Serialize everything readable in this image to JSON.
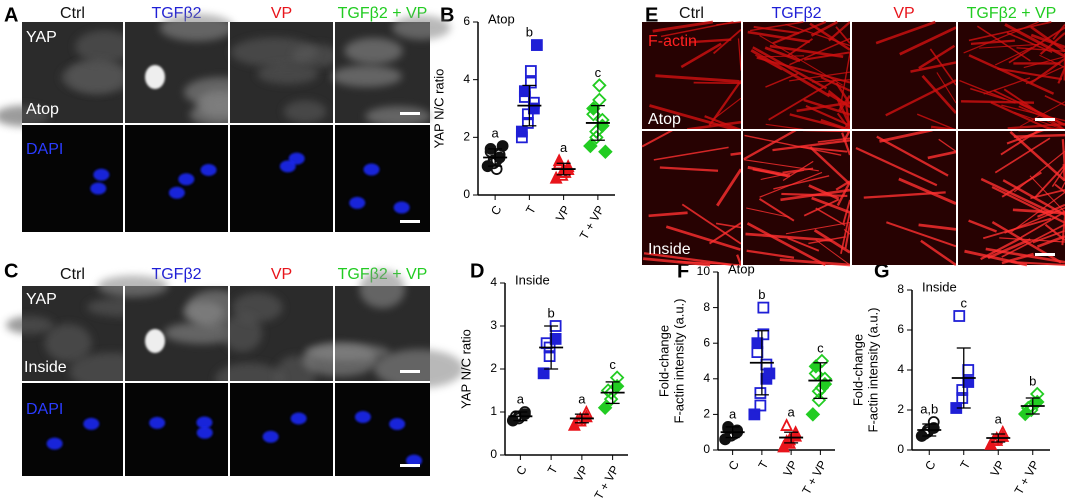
{
  "panel_labels": [
    "A",
    "B",
    "C",
    "D",
    "E",
    "F",
    "G"
  ],
  "panels": {
    "A": {
      "columns": [
        {
          "text": "Ctrl",
          "color": "#111111"
        },
        {
          "text": "TGFβ2",
          "color": "#1f1fd6"
        },
        {
          "text": "VP",
          "color": "#e8141b"
        },
        {
          "text": "TGFβ2 + VP",
          "color": "#22cc22"
        }
      ],
      "labels": [
        "YAP",
        "Atop",
        "DAPI"
      ]
    },
    "C": {
      "columns": [
        {
          "text": "Ctrl",
          "color": "#111111"
        },
        {
          "text": "TGFβ2",
          "color": "#1f1fd6"
        },
        {
          "text": "VP",
          "color": "#e8141b"
        },
        {
          "text": "TGFβ2 + VP",
          "color": "#22cc22"
        }
      ],
      "labels": [
        "YAP",
        "Inside",
        "DAPI"
      ]
    },
    "E": {
      "columns": [
        {
          "text": "Ctrl",
          "color": "#111111"
        },
        {
          "text": "TGFβ2",
          "color": "#1f1fd6"
        },
        {
          "text": "VP",
          "color": "#e8141b"
        },
        {
          "text": "TGFβ2 + VP",
          "color": "#22cc22"
        }
      ],
      "labels": [
        "F-actin",
        "Atop",
        "Inside"
      ]
    }
  },
  "chart_data": [
    {
      "type": "dot",
      "title": "Atop",
      "ylabel": [
        "YAP N/C ratio"
      ],
      "categories": [
        "C",
        "T",
        "VP",
        "T + VP"
      ],
      "colors": [
        "#111111",
        "#1f1fd6",
        "#e8141b",
        "#22cc22"
      ],
      "ylim": [
        0,
        6
      ],
      "yticks": [
        0,
        2,
        4,
        6
      ],
      "letters": [
        "a",
        "b",
        "a",
        "c"
      ],
      "means": [
        1.3,
        3.1,
        0.9,
        2.5
      ],
      "errors": [
        0.3,
        0.7,
        0.2,
        0.6
      ],
      "points": [
        [
          1.0,
          1.1,
          1.2,
          1.3,
          1.4,
          1.5,
          1.6,
          1.2,
          0.9,
          1.7
        ],
        [
          2.2,
          2.5,
          2.8,
          3.0,
          3.2,
          3.4,
          3.6,
          3.9,
          4.3,
          5.2,
          2.0
        ],
        [
          0.6,
          0.7,
          0.8,
          0.9,
          1.0,
          1.1,
          1.2,
          0.8
        ],
        [
          1.7,
          2.0,
          2.2,
          2.4,
          2.6,
          2.8,
          3.0,
          3.3,
          3.8,
          1.5
        ]
      ]
    },
    {
      "type": "dot",
      "title": "Inside",
      "ylabel": [
        "YAP N/C ratio"
      ],
      "categories": [
        "C",
        "T",
        "VP",
        "T + VP"
      ],
      "colors": [
        "#111111",
        "#1f1fd6",
        "#e8141b",
        "#22cc22"
      ],
      "ylim": [
        0,
        4
      ],
      "yticks": [
        0,
        1,
        2,
        3,
        4
      ],
      "letters": [
        "a",
        "b",
        "a",
        "c"
      ],
      "means": [
        0.9,
        2.5,
        0.85,
        1.45
      ],
      "errors": [
        0.1,
        0.5,
        0.1,
        0.25
      ],
      "points": [
        [
          0.8,
          0.85,
          0.9,
          0.95,
          1.0,
          0.9
        ],
        [
          1.9,
          2.3,
          2.5,
          2.7,
          3.0,
          2.6
        ],
        [
          0.7,
          0.8,
          0.85,
          0.9,
          1.0,
          0.8
        ],
        [
          1.1,
          1.3,
          1.45,
          1.6,
          1.8,
          1.5
        ]
      ]
    },
    {
      "type": "dot",
      "title": "Atop",
      "ylabel": [
        "Fold-change",
        "F-actin intensity (a.u.)"
      ],
      "categories": [
        "C",
        "T",
        "VP",
        "T + VP"
      ],
      "colors": [
        "#111111",
        "#1f1fd6",
        "#e8141b",
        "#22cc22"
      ],
      "ylim": [
        0,
        10
      ],
      "yticks": [
        0,
        2,
        4,
        6,
        8,
        10
      ],
      "letters": [
        "a",
        "b",
        "a",
        "c"
      ],
      "means": [
        1.0,
        4.9,
        0.7,
        3.9
      ],
      "errors": [
        0.3,
        1.8,
        0.3,
        1.0
      ],
      "points": [
        [
          0.6,
          0.8,
          0.9,
          1.0,
          1.1,
          1.2,
          1.3,
          0.9
        ],
        [
          2.0,
          2.5,
          3.2,
          4.0,
          4.8,
          5.5,
          6.0,
          6.5,
          8.0,
          4.3
        ],
        [
          0.2,
          0.4,
          0.6,
          0.8,
          1.0,
          1.4,
          0.5
        ],
        [
          2.0,
          2.8,
          3.3,
          3.7,
          4.0,
          4.3,
          4.7,
          5.0,
          3.5
        ]
      ]
    },
    {
      "type": "dot",
      "title": "Inside",
      "ylabel": [
        "Fold-change",
        "F-actin intensity (a.u.)"
      ],
      "categories": [
        "C",
        "T",
        "VP",
        "T + VP"
      ],
      "colors": [
        "#111111",
        "#1f1fd6",
        "#e8141b",
        "#22cc22"
      ],
      "ylim": [
        0,
        8
      ],
      "yticks": [
        0,
        2,
        4,
        6,
        8
      ],
      "letters": [
        "a,b",
        "c",
        "a",
        "b"
      ],
      "means": [
        1.0,
        3.6,
        0.6,
        2.2
      ],
      "errors": [
        0.3,
        1.5,
        0.2,
        0.4
      ],
      "points": [
        [
          0.7,
          0.9,
          1.0,
          1.1,
          1.4,
          0.8
        ],
        [
          2.1,
          2.6,
          3.0,
          3.4,
          4.0,
          6.7
        ],
        [
          0.3,
          0.5,
          0.6,
          0.7,
          0.9,
          0.5
        ],
        [
          1.8,
          2.0,
          2.2,
          2.4,
          2.8,
          2.1
        ]
      ]
    }
  ]
}
